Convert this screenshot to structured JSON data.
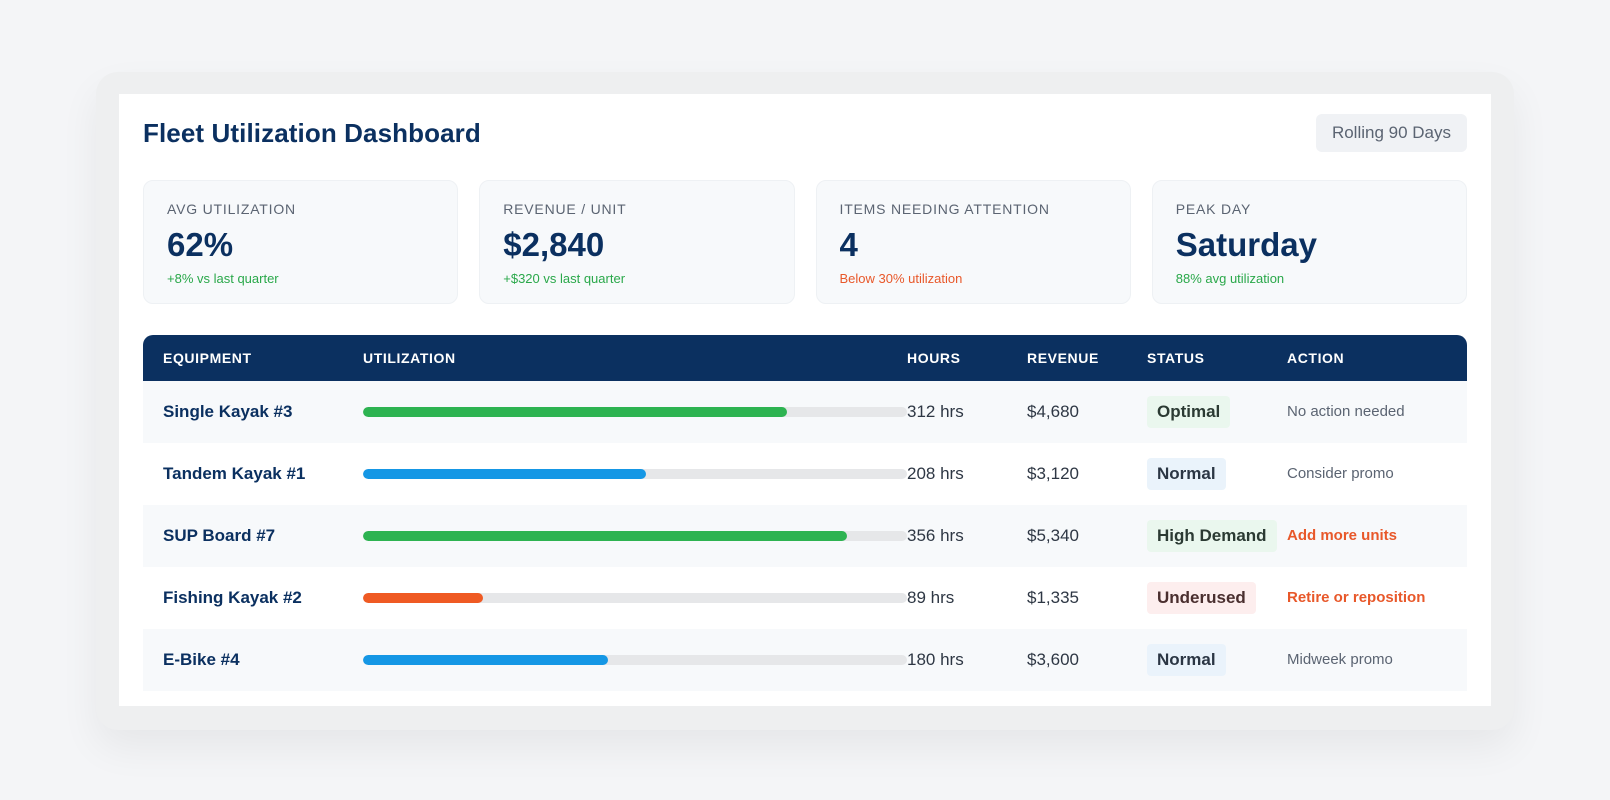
{
  "header": {
    "title": "Fleet Utilization Dashboard",
    "period": "Rolling 90 Days"
  },
  "kpis": [
    {
      "label": "AVG UTILIZATION",
      "value": "62%",
      "delta": "+8% vs last quarter",
      "tone": "pos"
    },
    {
      "label": "REVENUE / UNIT",
      "value": "$2,840",
      "delta": "+$320 vs last quarter",
      "tone": "pos"
    },
    {
      "label": "ITEMS NEEDING ATTENTION",
      "value": "4",
      "delta": "Below 30% utilization",
      "tone": "warn"
    },
    {
      "label": "PEAK DAY",
      "value": "Saturday",
      "delta": "88% avg utilization",
      "tone": "pos"
    }
  ],
  "table": {
    "columns": [
      "EQUIPMENT",
      "UTILIZATION",
      "HOURS",
      "REVENUE",
      "STATUS",
      "ACTION"
    ],
    "rows": [
      {
        "equipment": "Single Kayak #3",
        "utilization": 0.78,
        "bar_color": "#2db351",
        "hours": "312 hrs",
        "revenue": "$4,680",
        "status": "Optimal",
        "status_type": "optimal",
        "action": "No action needed",
        "action_urgent": false
      },
      {
        "equipment": "Tandem Kayak #1",
        "utilization": 0.52,
        "bar_color": "#1597e5",
        "hours": "208 hrs",
        "revenue": "$3,120",
        "status": "Normal",
        "status_type": "normal",
        "action": "Consider promo",
        "action_urgent": false
      },
      {
        "equipment": "SUP Board #7",
        "utilization": 0.89,
        "bar_color": "#2db351",
        "hours": "356 hrs",
        "revenue": "$5,340",
        "status": "High Demand",
        "status_type": "high",
        "action": "Add more units",
        "action_urgent": true
      },
      {
        "equipment": "Fishing Kayak #2",
        "utilization": 0.22,
        "bar_color": "#ef5a23",
        "hours": "89 hrs",
        "revenue": "$1,335",
        "status": "Underused",
        "status_type": "under",
        "action": "Retire or reposition",
        "action_urgent": true
      },
      {
        "equipment": "E-Bike #4",
        "utilization": 0.45,
        "bar_color": "#1597e5",
        "hours": "180 hrs",
        "revenue": "$3,600",
        "status": "Normal",
        "status_type": "normal",
        "action": "Midweek promo",
        "action_urgent": false
      }
    ]
  }
}
